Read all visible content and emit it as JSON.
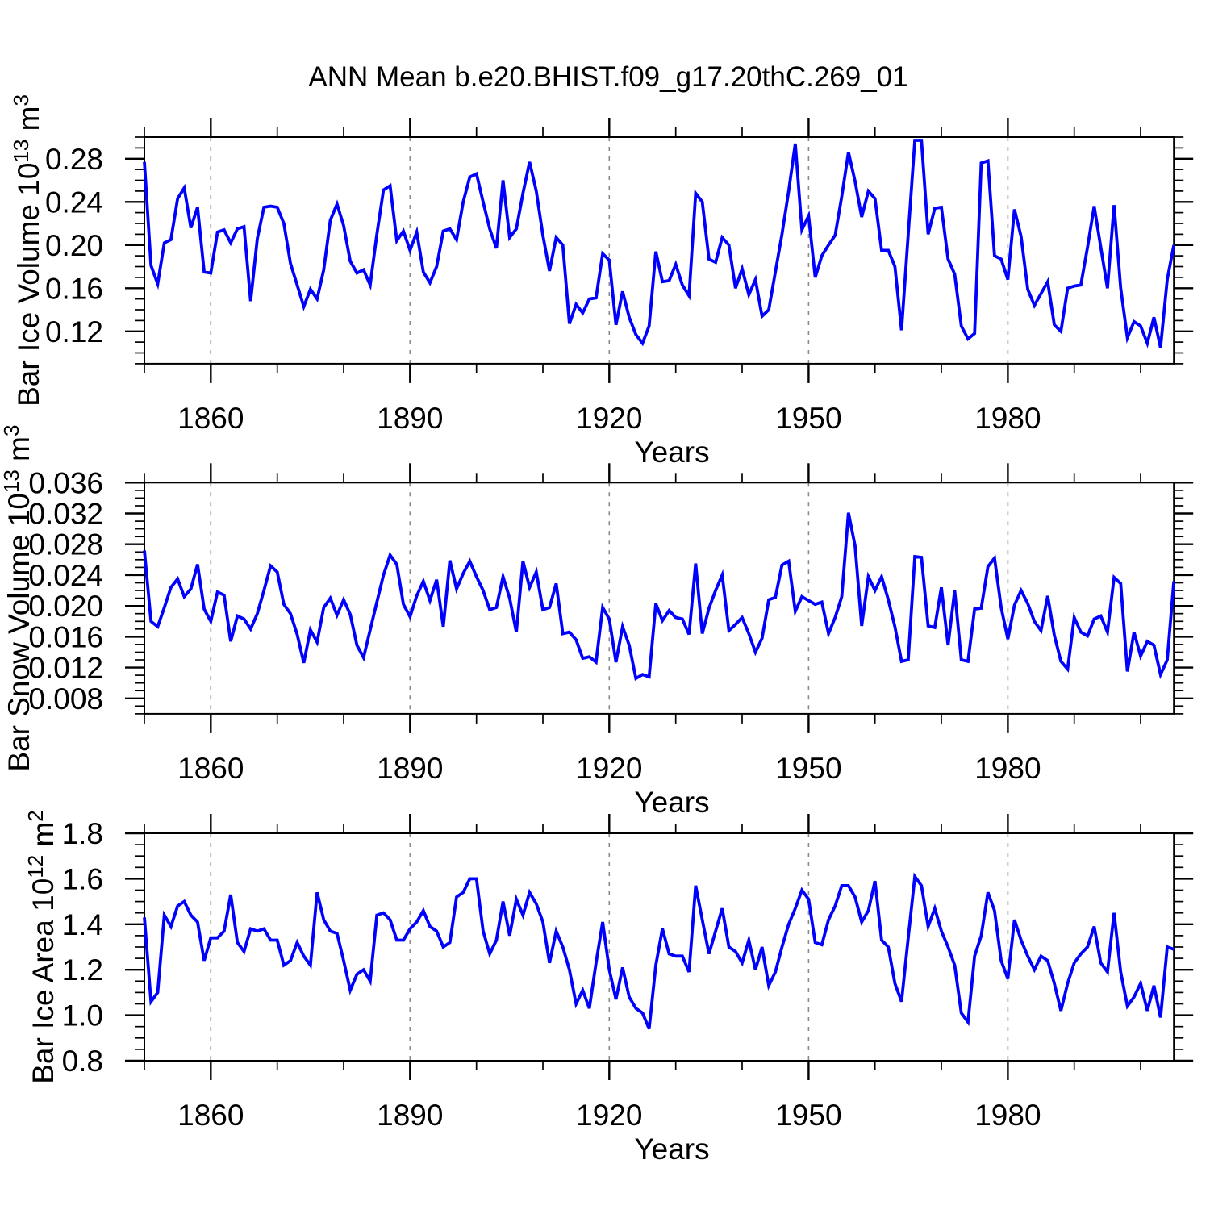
{
  "title": "ANN Mean b.e20.BHIST.f09_g17.20thC.269_01",
  "xlabel": "Years",
  "chart_data": [
    {
      "id": "bar-ice-volume",
      "type": "line",
      "series_color": "#0000ff",
      "ylabel_plain": "Bar Ice Volume 10^13 m^3",
      "ylabel_parts": [
        {
          "t": "Bar Ice Volume 10",
          "sup": false
        },
        {
          "t": "13",
          "sup": true
        },
        {
          "t": " m",
          "sup": false
        },
        {
          "t": "3",
          "sup": true
        }
      ],
      "xlim": [
        1850,
        2005
      ],
      "ylim": [
        0.09,
        0.3
      ],
      "x_start_year": 1850,
      "x_step_years": 1,
      "x_minor_step": 10,
      "y_minor_step": 0.01,
      "grid": "vertical-dashed-at-major-x",
      "x_ticks": {
        "values": [
          1860,
          1890,
          1920,
          1950,
          1980
        ],
        "labels": [
          "1860",
          "1890",
          "1920",
          "1950",
          "1980"
        ]
      },
      "y_ticks": {
        "values": [
          0.12,
          0.16,
          0.2,
          0.24,
          0.28
        ],
        "labels": [
          "0.12",
          "0.16",
          "0.20",
          "0.24",
          "0.28"
        ]
      },
      "values": [
        0.277,
        0.181,
        0.164,
        0.202,
        0.205,
        0.243,
        0.253,
        0.216,
        0.235,
        0.175,
        0.174,
        0.212,
        0.214,
        0.202,
        0.215,
        0.217,
        0.148,
        0.206,
        0.235,
        0.236,
        0.235,
        0.22,
        0.183,
        0.163,
        0.143,
        0.159,
        0.15,
        0.177,
        0.223,
        0.238,
        0.218,
        0.185,
        0.174,
        0.177,
        0.163,
        0.21,
        0.251,
        0.255,
        0.204,
        0.213,
        0.195,
        0.212,
        0.175,
        0.165,
        0.18,
        0.213,
        0.215,
        0.205,
        0.24,
        0.263,
        0.266,
        0.24,
        0.215,
        0.197,
        0.26,
        0.207,
        0.215,
        0.248,
        0.277,
        0.25,
        0.209,
        0.176,
        0.207,
        0.2,
        0.127,
        0.145,
        0.137,
        0.15,
        0.151,
        0.192,
        0.186,
        0.126,
        0.157,
        0.133,
        0.117,
        0.109,
        0.125,
        0.194,
        0.166,
        0.167,
        0.182,
        0.163,
        0.153,
        0.248,
        0.24,
        0.187,
        0.184,
        0.207,
        0.2,
        0.16,
        0.178,
        0.154,
        0.168,
        0.134,
        0.14,
        0.175,
        0.21,
        0.25,
        0.294,
        0.214,
        0.227,
        0.17,
        0.19,
        0.2,
        0.209,
        0.245,
        0.286,
        0.259,
        0.226,
        0.25,
        0.243,
        0.195,
        0.195,
        0.18,
        0.121,
        0.21,
        0.297,
        0.297,
        0.21,
        0.234,
        0.235,
        0.187,
        0.173,
        0.125,
        0.113,
        0.118,
        0.276,
        0.278,
        0.19,
        0.187,
        0.168,
        0.233,
        0.208,
        0.159,
        0.144,
        0.155,
        0.166,
        0.126,
        0.12,
        0.16,
        0.162,
        0.163,
        0.198,
        0.236,
        0.198,
        0.16,
        0.237,
        0.16,
        0.114,
        0.129,
        0.125,
        0.109,
        0.133,
        0.105,
        0.168,
        0.2
      ]
    },
    {
      "id": "bar-snow-volume",
      "type": "line",
      "series_color": "#0000ff",
      "ylabel_plain": "Bar Snow Volume 10^13 m^3",
      "ylabel_parts": [
        {
          "t": "Bar Snow Volume 10",
          "sup": false
        },
        {
          "t": "13",
          "sup": true
        },
        {
          "t": " m",
          "sup": false
        },
        {
          "t": "3",
          "sup": true
        }
      ],
      "xlim": [
        1850,
        2005
      ],
      "ylim": [
        0.006,
        0.036
      ],
      "x_start_year": 1850,
      "x_step_years": 1,
      "x_minor_step": 10,
      "y_minor_step": 0.001,
      "grid": "vertical-dashed-at-major-x",
      "x_ticks": {
        "values": [
          1860,
          1890,
          1920,
          1950,
          1980
        ],
        "labels": [
          "1860",
          "1890",
          "1920",
          "1950",
          "1980"
        ]
      },
      "y_ticks": {
        "values": [
          0.008,
          0.012,
          0.016,
          0.02,
          0.024,
          0.028,
          0.032,
          0.036
        ],
        "labels": [
          "0.008",
          "0.012",
          "0.016",
          "0.020",
          "0.024",
          "0.028",
          "0.032",
          "0.036"
        ]
      },
      "values": [
        0.0272,
        0.018,
        0.0173,
        0.0198,
        0.0224,
        0.0235,
        0.0212,
        0.0222,
        0.0254,
        0.0196,
        0.018,
        0.0218,
        0.0214,
        0.0154,
        0.0187,
        0.0183,
        0.017,
        0.019,
        0.022,
        0.0252,
        0.0244,
        0.0202,
        0.019,
        0.0163,
        0.0126,
        0.0169,
        0.0153,
        0.0198,
        0.021,
        0.0188,
        0.0208,
        0.0189,
        0.0149,
        0.0133,
        0.0169,
        0.0205,
        0.024,
        0.0266,
        0.0254,
        0.0202,
        0.0186,
        0.0213,
        0.0232,
        0.0207,
        0.0234,
        0.0173,
        0.0259,
        0.0222,
        0.0242,
        0.0258,
        0.0238,
        0.022,
        0.0195,
        0.0198,
        0.0238,
        0.021,
        0.0166,
        0.0258,
        0.0224,
        0.0244,
        0.0195,
        0.0198,
        0.0229,
        0.0164,
        0.0166,
        0.0156,
        0.0132,
        0.0134,
        0.0127,
        0.0198,
        0.0183,
        0.0127,
        0.0173,
        0.0149,
        0.0106,
        0.0111,
        0.0108,
        0.0203,
        0.0181,
        0.0194,
        0.0185,
        0.0183,
        0.0163,
        0.0255,
        0.0164,
        0.0197,
        0.022,
        0.024,
        0.0168,
        0.0176,
        0.0185,
        0.0164,
        0.014,
        0.0158,
        0.0208,
        0.0211,
        0.0253,
        0.0258,
        0.0193,
        0.0212,
        0.0207,
        0.0202,
        0.0205,
        0.0164,
        0.0185,
        0.0212,
        0.0321,
        0.0278,
        0.0174,
        0.0238,
        0.022,
        0.0238,
        0.0208,
        0.0173,
        0.0128,
        0.013,
        0.0264,
        0.0263,
        0.0174,
        0.0172,
        0.0224,
        0.0149,
        0.022,
        0.013,
        0.0128,
        0.0196,
        0.0197,
        0.0251,
        0.0262,
        0.0198,
        0.0157,
        0.0201,
        0.022,
        0.0203,
        0.018,
        0.0168,
        0.0213,
        0.0162,
        0.0128,
        0.0118,
        0.0185,
        0.0166,
        0.0161,
        0.0183,
        0.0187,
        0.0166,
        0.0237,
        0.0229,
        0.0115,
        0.0166,
        0.0135,
        0.0154,
        0.0149,
        0.0111,
        0.013,
        0.0232
      ]
    },
    {
      "id": "bar-ice-area",
      "type": "line",
      "series_color": "#0000ff",
      "ylabel_plain": "Bar Ice Area 10^12 m^2",
      "ylabel_parts": [
        {
          "t": "Bar Ice Area 10",
          "sup": false
        },
        {
          "t": "12",
          "sup": true
        },
        {
          "t": " m",
          "sup": false
        },
        {
          "t": "2",
          "sup": true
        }
      ],
      "xlim": [
        1850,
        2005
      ],
      "ylim": [
        0.8,
        1.8
      ],
      "x_start_year": 1850,
      "x_step_years": 1,
      "x_minor_step": 10,
      "y_minor_step": 0.05,
      "grid": "vertical-dashed-at-major-x",
      "x_ticks": {
        "values": [
          1860,
          1890,
          1920,
          1950,
          1980
        ],
        "labels": [
          "1860",
          "1890",
          "1920",
          "1950",
          "1980"
        ]
      },
      "y_ticks": {
        "values": [
          0.8,
          1.0,
          1.2,
          1.4,
          1.6,
          1.8
        ],
        "labels": [
          "0.8",
          "1.0",
          "1.2",
          "1.4",
          "1.6",
          "1.8"
        ]
      },
      "values": [
        1.43,
        1.06,
        1.1,
        1.44,
        1.39,
        1.48,
        1.5,
        1.44,
        1.41,
        1.24,
        1.34,
        1.34,
        1.37,
        1.53,
        1.32,
        1.28,
        1.38,
        1.37,
        1.38,
        1.33,
        1.33,
        1.22,
        1.24,
        1.32,
        1.26,
        1.22,
        1.54,
        1.42,
        1.37,
        1.36,
        1.24,
        1.11,
        1.18,
        1.2,
        1.15,
        1.44,
        1.45,
        1.42,
        1.33,
        1.33,
        1.38,
        1.41,
        1.46,
        1.39,
        1.37,
        1.3,
        1.32,
        1.52,
        1.54,
        1.6,
        1.6,
        1.37,
        1.27,
        1.33,
        1.5,
        1.35,
        1.51,
        1.44,
        1.54,
        1.49,
        1.41,
        1.23,
        1.37,
        1.3,
        1.2,
        1.05,
        1.11,
        1.03,
        1.23,
        1.41,
        1.2,
        1.07,
        1.21,
        1.08,
        1.03,
        1.01,
        0.94,
        1.22,
        1.38,
        1.27,
        1.26,
        1.26,
        1.19,
        1.57,
        1.42,
        1.27,
        1.37,
        1.47,
        1.3,
        1.28,
        1.23,
        1.33,
        1.2,
        1.3,
        1.13,
        1.19,
        1.3,
        1.4,
        1.47,
        1.55,
        1.51,
        1.32,
        1.31,
        1.42,
        1.48,
        1.57,
        1.57,
        1.52,
        1.41,
        1.46,
        1.59,
        1.33,
        1.3,
        1.14,
        1.06,
        1.34,
        1.61,
        1.57,
        1.39,
        1.47,
        1.37,
        1.3,
        1.22,
        1.01,
        0.97,
        1.26,
        1.35,
        1.54,
        1.46,
        1.24,
        1.16,
        1.42,
        1.33,
        1.26,
        1.2,
        1.26,
        1.24,
        1.14,
        1.02,
        1.14,
        1.23,
        1.27,
        1.3,
        1.39,
        1.23,
        1.19,
        1.45,
        1.19,
        1.04,
        1.08,
        1.14,
        1.02,
        1.13,
        0.99,
        1.3,
        1.29
      ]
    }
  ]
}
